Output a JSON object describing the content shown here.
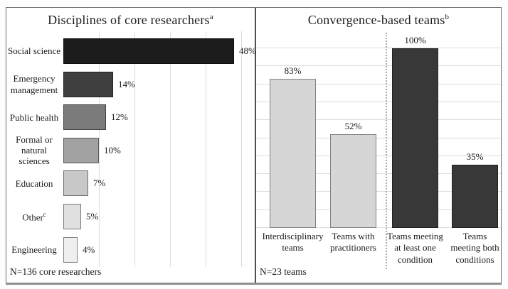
{
  "chart_data": [
    {
      "type": "bar",
      "orientation": "horizontal",
      "title": "Disciplines of core researchers",
      "title_superscript": "a",
      "categories": [
        "Social science",
        "Emergency management",
        "Public health",
        "Formal or natural sciences",
        "Education",
        "Other",
        "Engineering"
      ],
      "category_superscripts": [
        "",
        "",
        "",
        "",
        "",
        "c",
        ""
      ],
      "values": [
        48,
        14,
        12,
        10,
        7,
        5,
        4
      ],
      "value_labels": [
        "48%",
        "14%",
        "12%",
        "10%",
        "7%",
        "5%",
        "4%"
      ],
      "unit": "percent",
      "xlim": [
        0,
        53
      ],
      "gridlines": [
        10,
        20,
        30,
        40,
        50
      ],
      "grid_on": true,
      "legend": "none",
      "bar_colors": [
        "#1b1b1b",
        "#3f3f3f",
        "#7b7b7b",
        "#a2a2a2",
        "#c8c8c8",
        "#e0e0e0",
        "#efefef"
      ],
      "note": "N=136 core researchers"
    },
    {
      "type": "bar",
      "orientation": "vertical",
      "title": "Convergence-based teams",
      "title_superscript": "b",
      "categories": [
        "Interdisciplinary teams",
        "Teams with practitioners",
        "Teams meeting at least one condition",
        "Teams meeting both conditions"
      ],
      "values": [
        83,
        52,
        100,
        35
      ],
      "value_labels": [
        "83%",
        "52%",
        "100%",
        "35%"
      ],
      "unit": "percent",
      "ylim": [
        0,
        100
      ],
      "gridline_step": 10,
      "grid_on": true,
      "legend": "none",
      "group_divider_after_index": 1,
      "bar_colors": [
        "#d6d6d6",
        "#d6d6d6",
        "#383838",
        "#383838"
      ],
      "note": "N=23 teams"
    }
  ]
}
